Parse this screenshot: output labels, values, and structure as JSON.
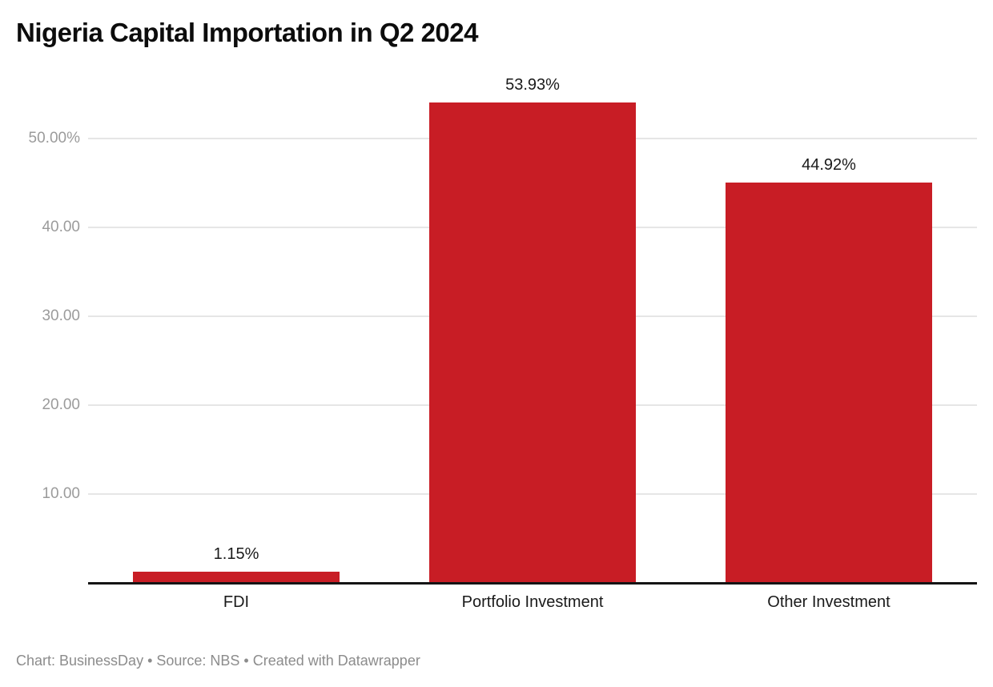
{
  "title": "Nigeria Capital Importation in Q2 2024",
  "footer": "Chart: BusinessDay • Source: NBS • Created with Datawrapper",
  "colors": {
    "bar": "#c81d25",
    "baseline": "#151515",
    "gridline": "#e6e6e6",
    "tick_label": "#9b9b9b",
    "data_label": "#1a1a1a",
    "footer_text": "#8c8c8c"
  },
  "chart_data": {
    "type": "bar",
    "title": "Nigeria Capital Importation in Q2 2024",
    "categories": [
      "FDI",
      "Portfolio Investment",
      "Other Investment"
    ],
    "values": [
      1.15,
      53.93,
      44.92
    ],
    "value_labels": [
      "1.15%",
      "53.93%",
      "44.92%"
    ],
    "xlabel": "",
    "ylabel": "",
    "ylim": [
      0,
      55
    ],
    "yticks": [
      {
        "value": 10,
        "label": "10.00"
      },
      {
        "value": 20,
        "label": "20.00"
      },
      {
        "value": 30,
        "label": "30.00"
      },
      {
        "value": 40,
        "label": "40.00"
      },
      {
        "value": 50,
        "label": "50.00%"
      }
    ],
    "grid": "horizontal",
    "legend": "none",
    "attribution": "Chart: BusinessDay • Source: NBS • Created with Datawrapper"
  }
}
